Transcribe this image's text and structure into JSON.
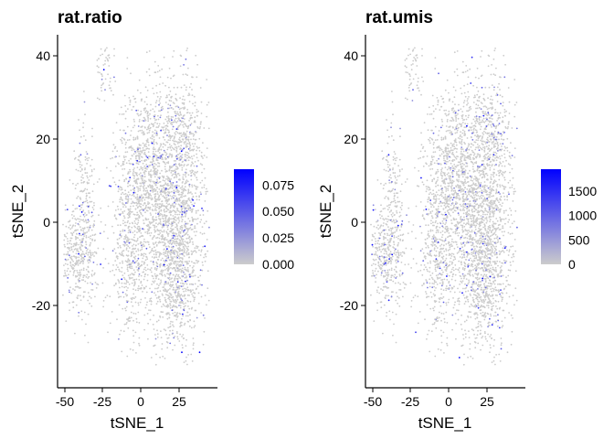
{
  "chart_data": [
    {
      "type": "scatter",
      "title": "rat.ratio",
      "xlabel": "tSNE_1",
      "ylabel": "tSNE_2",
      "xlim": [
        -55,
        45
      ],
      "ylim": [
        -40,
        45
      ],
      "xticks": [
        "-50",
        "-25",
        "0",
        "25"
      ],
      "yticks": [
        "-20",
        "0",
        "20",
        "40"
      ],
      "grid": false,
      "legend": {
        "placement": "right",
        "type": "colorbar",
        "low_color": "#cccccc",
        "high_color": "#0000ff",
        "range": [
          0,
          0.09
        ],
        "labels": [
          "0.075",
          "0.050",
          "0.025",
          "0.000"
        ],
        "label_values": [
          0.075,
          0.05,
          0.025,
          0
        ]
      },
      "point_color_base": "#cccccc",
      "highlight_color": "#0000ff",
      "clusters": [
        {
          "cx": 15,
          "cy": 5,
          "sx": 12,
          "sy": 15,
          "n": 1400
        },
        {
          "cx": 0,
          "cy": 12,
          "sx": 10,
          "sy": 10,
          "n": 700
        },
        {
          "cx": 20,
          "cy": -12,
          "sx": 9,
          "sy": 10,
          "n": 700
        },
        {
          "cx": -10,
          "cy": -10,
          "sx": 6,
          "sy": 8,
          "n": 350
        },
        {
          "cx": -42,
          "cy": -8,
          "sx": 6,
          "sy": 6,
          "n": 400
        },
        {
          "cx": -38,
          "cy": 7,
          "sx": 3,
          "sy": 9,
          "n": 150
        },
        {
          "cx": -25,
          "cy": 36,
          "sx": 3,
          "sy": 4,
          "n": 55
        },
        {
          "cx": 25,
          "cy": 18,
          "sx": 5,
          "sy": 8,
          "n": 200
        }
      ]
    },
    {
      "type": "scatter",
      "title": "rat.umis",
      "xlabel": "tSNE_1",
      "ylabel": "tSNE_2",
      "xlim": [
        -55,
        45
      ],
      "ylim": [
        -40,
        45
      ],
      "xticks": [
        "-50",
        "-25",
        "0",
        "25"
      ],
      "yticks": [
        "-20",
        "0",
        "20",
        "40"
      ],
      "grid": false,
      "legend": {
        "placement": "right",
        "type": "colorbar",
        "low_color": "#cccccc",
        "high_color": "#0000ff",
        "range": [
          0,
          1950
        ],
        "labels": [
          "1500",
          "1000",
          "500",
          "0"
        ],
        "label_values": [
          1500,
          1000,
          500,
          0
        ]
      },
      "point_color_base": "#cccccc",
      "highlight_color": "#0000ff",
      "clusters": [
        {
          "cx": 15,
          "cy": 5,
          "sx": 12,
          "sy": 15,
          "n": 1400
        },
        {
          "cx": 0,
          "cy": 12,
          "sx": 10,
          "sy": 10,
          "n": 700
        },
        {
          "cx": 20,
          "cy": -12,
          "sx": 9,
          "sy": 10,
          "n": 700
        },
        {
          "cx": -10,
          "cy": -10,
          "sx": 6,
          "sy": 8,
          "n": 350
        },
        {
          "cx": -42,
          "cy": -8,
          "sx": 6,
          "sy": 6,
          "n": 400
        },
        {
          "cx": -38,
          "cy": 7,
          "sx": 3,
          "sy": 9,
          "n": 150
        },
        {
          "cx": -25,
          "cy": 36,
          "sx": 3,
          "sy": 4,
          "n": 55
        },
        {
          "cx": 25,
          "cy": 18,
          "sx": 5,
          "sy": 8,
          "n": 200
        }
      ]
    }
  ]
}
